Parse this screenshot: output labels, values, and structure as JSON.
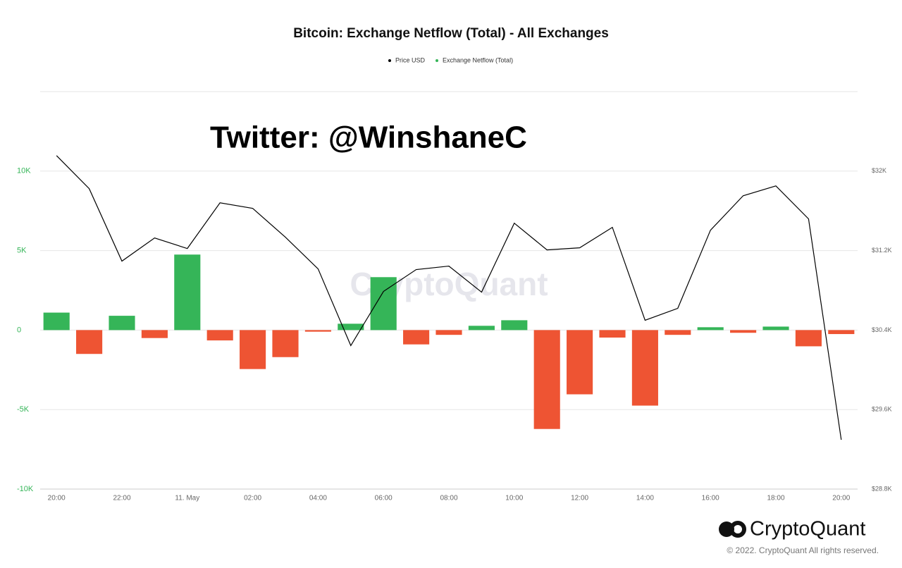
{
  "chart_data": {
    "type": "bar",
    "title": "Bitcoin: Exchange Netflow (Total) - All Exchanges",
    "categories": [
      "20:00",
      null,
      "22:00",
      null,
      "11. May",
      null,
      "02:00",
      null,
      "04:00",
      null,
      "06:00",
      null,
      "08:00",
      null,
      "10:00",
      null,
      "12:00",
      null,
      "14:00",
      null,
      "16:00",
      null,
      "18:00",
      null,
      "20:00"
    ],
    "series": [
      {
        "name": "Price USD",
        "type": "line",
        "axis": "y2",
        "color": "#000000",
        "values": [
          32156,
          31823,
          31094,
          31327,
          31221,
          31681,
          31625,
          31335,
          31016,
          30244,
          30789,
          31009,
          31044,
          30782,
          31476,
          31207,
          31228,
          31434,
          30499,
          30619,
          31405,
          31752,
          31851,
          31519,
          29296
        ]
      },
      {
        "name": "Exchange Netflow (Total)",
        "type": "bar",
        "color": "#35b558",
        "negative_color": "#ee5433",
        "values": [
          1100,
          -1500,
          900,
          -500,
          4750,
          -650,
          -2450,
          -1700,
          -100,
          400,
          3330,
          -900,
          -300,
          270,
          620,
          -6220,
          -4040,
          -470,
          -4750,
          -300,
          180,
          -170,
          220,
          -1020,
          -250
        ]
      }
    ],
    "ylim": [
      -10000,
      15000
    ],
    "yticks": [
      {
        "value": -10000,
        "label": "-10K"
      },
      {
        "value": -5000,
        "label": "-5K"
      },
      0,
      {
        "value": 5000,
        "label": "5K"
      },
      {
        "value": 10000,
        "label": "10K"
      }
    ],
    "y2lim": [
      28800,
      32800
    ],
    "y2ticks": [
      {
        "value": 28800,
        "label": "$28.8K"
      },
      {
        "value": 29600,
        "label": "$29.6K"
      },
      {
        "value": 30400,
        "label": "$30.4K"
      },
      {
        "value": 31200,
        "label": "$31.2K"
      },
      {
        "value": 32000,
        "label": "$32K"
      }
    ],
    "grid": true,
    "legend": "top",
    "annotations": [
      "Twitter: @WinshaneC",
      "CryptoQuant",
      "CryptoQuant",
      "© 2022. CryptoQuant All rights reserved."
    ]
  }
}
